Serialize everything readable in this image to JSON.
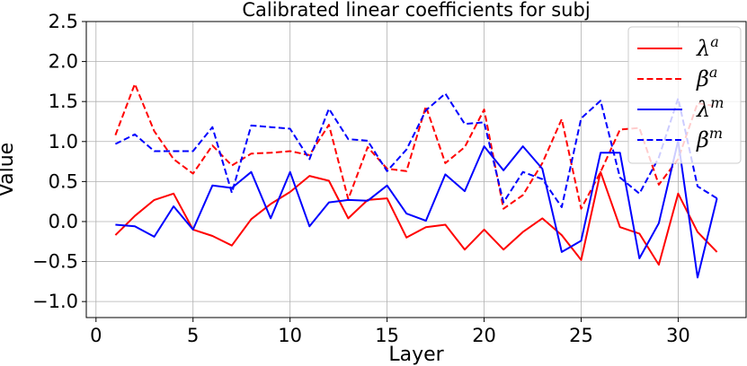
{
  "chart_data": {
    "type": "line",
    "title": "Calibrated linear coefficients for subj",
    "xlabel": "Layer",
    "ylabel": "Value",
    "xlim": [
      -0.5,
      33.5
    ],
    "ylim": [
      -1.2,
      2.5
    ],
    "xticks": [
      0,
      5,
      10,
      15,
      20,
      25,
      30
    ],
    "yticks": [
      -1.0,
      -0.5,
      0.0,
      0.5,
      1.0,
      1.5,
      2.0,
      2.5
    ],
    "ytick_labels": [
      "−1.0",
      "−0.5",
      "0.0",
      "0.5",
      "1.0",
      "1.5",
      "2.0",
      "2.5"
    ],
    "grid": true,
    "legend_position": "top-right",
    "x": [
      1,
      2,
      3,
      4,
      5,
      6,
      7,
      8,
      9,
      10,
      11,
      12,
      13,
      14,
      15,
      16,
      17,
      18,
      19,
      20,
      21,
      22,
      23,
      24,
      25,
      26,
      27,
      28,
      29,
      30,
      31,
      32
    ],
    "series": [
      {
        "name": "λ",
        "sup": "a",
        "color": "#ff0000",
        "dash": "solid",
        "values": [
          -0.17,
          0.07,
          0.27,
          0.35,
          -0.1,
          -0.18,
          -0.3,
          0.03,
          0.22,
          0.37,
          0.57,
          0.51,
          0.04,
          0.27,
          0.29,
          -0.2,
          -0.07,
          -0.04,
          -0.35,
          -0.1,
          -0.35,
          -0.13,
          0.04,
          -0.17,
          -0.48,
          0.62,
          -0.07,
          -0.15,
          -0.54,
          0.35,
          -0.13,
          -0.38
        ]
      },
      {
        "name": "β",
        "sup": "a",
        "color": "#ff0000",
        "dash": "dashed",
        "values": [
          1.08,
          1.72,
          1.13,
          0.78,
          0.6,
          0.95,
          0.7,
          0.85,
          0.86,
          0.88,
          0.83,
          1.21,
          0.28,
          0.93,
          0.66,
          0.63,
          1.44,
          0.73,
          0.93,
          1.4,
          0.16,
          0.33,
          0.73,
          1.28,
          0.16,
          0.62,
          1.15,
          1.17,
          0.46,
          0.78,
          1.48,
          1.44
        ]
      },
      {
        "name": "λ",
        "sup": "m",
        "color": "#0000ff",
        "dash": "solid",
        "values": [
          -0.04,
          -0.06,
          -0.19,
          0.19,
          -0.1,
          0.45,
          0.42,
          0.62,
          0.04,
          0.62,
          -0.06,
          0.24,
          0.27,
          0.26,
          0.45,
          0.1,
          0.01,
          0.59,
          0.38,
          0.94,
          0.64,
          0.94,
          0.66,
          -0.38,
          -0.24,
          0.86,
          0.86,
          -0.46,
          -0.02,
          1.01,
          -0.7,
          0.29
        ]
      },
      {
        "name": "β",
        "sup": "m",
        "color": "#0000ff",
        "dash": "dashed",
        "values": [
          0.97,
          1.09,
          0.88,
          0.88,
          0.88,
          1.18,
          0.36,
          1.2,
          1.18,
          1.16,
          0.78,
          1.41,
          1.03,
          1.01,
          0.63,
          0.9,
          1.39,
          1.6,
          1.22,
          1.24,
          0.24,
          0.62,
          0.53,
          0.18,
          1.29,
          1.51,
          0.55,
          0.35,
          0.8,
          1.54,
          0.44,
          0.29
        ]
      }
    ]
  }
}
